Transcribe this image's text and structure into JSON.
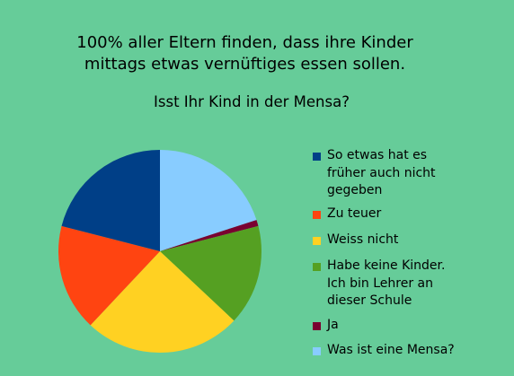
{
  "chart_data": {
    "type": "pie",
    "title": [
      "100% aller Eltern finden, dass ihre Kinder",
      "mittags etwas vernüftiges essen sollen."
    ],
    "subtitle": "Isst Ihr Kind in der Mensa?",
    "legend_position": "right",
    "slices": [
      {
        "label": "So etwas hat es\nfrüher auch nicht\ngegeben",
        "value": 21,
        "color": "#003f87"
      },
      {
        "label": "Zu teuer",
        "value": 17,
        "color": "#ff4411"
      },
      {
        "label": "Weiss nicht",
        "value": 25,
        "color": "#ffd122"
      },
      {
        "label": "Habe keine Kinder.\nIch bin Lehrer an\ndieser Schule",
        "value": 16,
        "color": "#55a022"
      },
      {
        "label": "Ja",
        "value": 1,
        "color": "#7a0030"
      },
      {
        "label": "Was ist eine Mensa?",
        "value": 20,
        "color": "#88ccff"
      }
    ]
  }
}
